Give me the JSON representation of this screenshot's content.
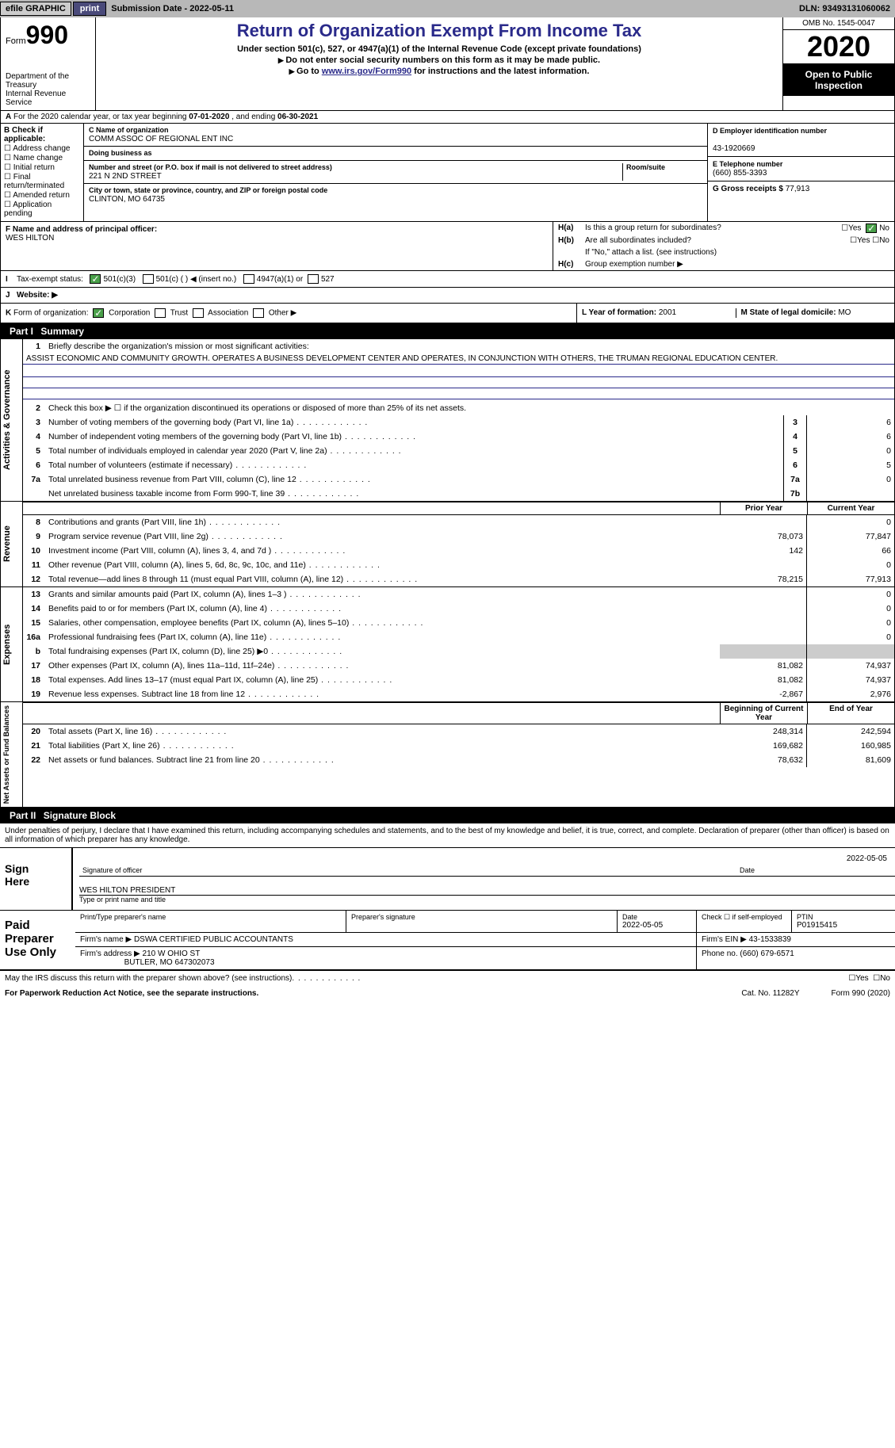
{
  "topbar": {
    "efile": "efile GRAPHIC",
    "print": "print",
    "submission_label": "Submission Date - ",
    "submission_date": "2022-05-11",
    "dln_label": "DLN: ",
    "dln": "93493131060062"
  },
  "header": {
    "form_prefix": "Form",
    "form_no": "990",
    "dept": "Department of the Treasury\nInternal Revenue Service",
    "title": "Return of Organization Exempt From Income Tax",
    "sub1": "Under section 501(c), 527, or 4947(a)(1) of the Internal Revenue Code (except private foundations)",
    "sub2": "Do not enter social security numbers on this form as it may be made public.",
    "sub3_pre": "Go to ",
    "sub3_link": "www.irs.gov/Form990",
    "sub3_post": " for instructions and the latest information.",
    "omb": "OMB No. 1545-0047",
    "year": "2020",
    "otp": "Open to Public Inspection"
  },
  "sectionA": {
    "prefix": "A",
    "text": "For the 2020 calendar year, or tax year beginning ",
    "start": "07-01-2020",
    "mid": " , and ending ",
    "end": "06-30-2021"
  },
  "boxB": {
    "label": "B Check if applicable:",
    "items": [
      "Address change",
      "Name change",
      "Initial return",
      "Final return/terminated",
      "Amended return",
      "Application pending"
    ]
  },
  "boxC": {
    "name_label": "C Name of organization",
    "name": "COMM ASSOC OF REGIONAL ENT INC",
    "dba_label": "Doing business as",
    "dba": "",
    "addr_label": "Number and street (or P.O. box if mail is not delivered to street address)",
    "room_label": "Room/suite",
    "addr": "221 N 2ND STREET",
    "city_label": "City or town, state or province, country, and ZIP or foreign postal code",
    "city": "CLINTON, MO  64735"
  },
  "boxD": {
    "label": "D Employer identification number",
    "value": "43-1920669"
  },
  "boxE": {
    "label": "E Telephone number",
    "value": "(660) 855-3393"
  },
  "boxG": {
    "label": "G Gross receipts $ ",
    "value": "77,913"
  },
  "boxF": {
    "label": "F Name and address of principal officer:",
    "value": "WES HILTON"
  },
  "boxH": {
    "a_label": "H(a)",
    "a_text": "Is this a group return for subordinates?",
    "a_yes": "Yes",
    "a_no": "No",
    "b_label": "H(b)",
    "b_text": "Are all subordinates included?",
    "b_note": "If \"No,\" attach a list. (see instructions)",
    "c_label": "H(c)",
    "c_text": "Group exemption number ▶"
  },
  "rowI": {
    "label": "I",
    "text": "Tax-exempt status:",
    "o1": "501(c)(3)",
    "o2": "501(c) (  ) ◀ (insert no.)",
    "o3": "4947(a)(1) or",
    "o4": "527"
  },
  "rowJ": {
    "label": "J",
    "text": "Website: ▶"
  },
  "rowK": {
    "label": "K",
    "text": "Form of organization:",
    "o1": "Corporation",
    "o2": "Trust",
    "o3": "Association",
    "o4": "Other ▶",
    "L_label": "L Year of formation: ",
    "L_value": "2001",
    "M_label": "M State of legal domicile: ",
    "M_value": "MO"
  },
  "part1": {
    "hdr": "Part I",
    "title": "Summary",
    "sections": [
      {
        "side": "Activities & Governance",
        "pre_rows": [
          {
            "ln": "1",
            "desc": "Briefly describe the organization's mission or most significant activities:"
          }
        ],
        "mission": "ASSIST ECONOMIC AND COMMUNITY GROWTH. OPERATES A BUSINESS DEVELOPMENT CENTER AND OPERATES, IN CONJUNCTION WITH OTHERS, THE TRUMAN REGIONAL EDUCATION CENTER.",
        "blank_lines": 3,
        "row2": {
          "ln": "2",
          "desc": "Check this box ▶ ☐  if the organization discontinued its operations or disposed of more than 25% of its net assets."
        },
        "rows": [
          {
            "ln": "3",
            "desc": "Number of voting members of the governing body (Part VI, line 1a)",
            "rn": "3",
            "cy": "6"
          },
          {
            "ln": "4",
            "desc": "Number of independent voting members of the governing body (Part VI, line 1b)",
            "rn": "4",
            "cy": "6"
          },
          {
            "ln": "5",
            "desc": "Total number of individuals employed in calendar year 2020 (Part V, line 2a)",
            "rn": "5",
            "cy": "0"
          },
          {
            "ln": "6",
            "desc": "Total number of volunteers (estimate if necessary)",
            "rn": "6",
            "cy": "5"
          },
          {
            "ln": "7a",
            "desc": "Total unrelated business revenue from Part VIII, column (C), line 12",
            "rn": "7a",
            "cy": "0"
          },
          {
            "ln": "",
            "desc": "Net unrelated business taxable income from Form 990-T, line 39",
            "rn": "7b",
            "cy": ""
          }
        ]
      },
      {
        "side": "Revenue",
        "hdr": {
          "py": "Prior Year",
          "cy": "Current Year"
        },
        "rows": [
          {
            "ln": "8",
            "desc": "Contributions and grants (Part VIII, line 1h)",
            "py": "",
            "cy": "0"
          },
          {
            "ln": "9",
            "desc": "Program service revenue (Part VIII, line 2g)",
            "py": "78,073",
            "cy": "77,847"
          },
          {
            "ln": "10",
            "desc": "Investment income (Part VIII, column (A), lines 3, 4, and 7d )",
            "py": "142",
            "cy": "66"
          },
          {
            "ln": "11",
            "desc": "Other revenue (Part VIII, column (A), lines 5, 6d, 8c, 9c, 10c, and 11e)",
            "py": "",
            "cy": "0"
          },
          {
            "ln": "12",
            "desc": "Total revenue—add lines 8 through 11 (must equal Part VIII, column (A), line 12)",
            "py": "78,215",
            "cy": "77,913"
          }
        ]
      },
      {
        "side": "Expenses",
        "rows": [
          {
            "ln": "13",
            "desc": "Grants and similar amounts paid (Part IX, column (A), lines 1–3 )",
            "py": "",
            "cy": "0"
          },
          {
            "ln": "14",
            "desc": "Benefits paid to or for members (Part IX, column (A), line 4)",
            "py": "",
            "cy": "0"
          },
          {
            "ln": "15",
            "desc": "Salaries, other compensation, employee benefits (Part IX, column (A), lines 5–10)",
            "py": "",
            "cy": "0"
          },
          {
            "ln": "16a",
            "desc": "Professional fundraising fees (Part IX, column (A), line 11e)",
            "py": "",
            "cy": "0"
          },
          {
            "ln": "b",
            "desc": "Total fundraising expenses (Part IX, column (D), line 25) ▶0",
            "py": "grey",
            "cy": "grey"
          },
          {
            "ln": "17",
            "desc": "Other expenses (Part IX, column (A), lines 11a–11d, 11f–24e)",
            "py": "81,082",
            "cy": "74,937"
          },
          {
            "ln": "18",
            "desc": "Total expenses. Add lines 13–17 (must equal Part IX, column (A), line 25)",
            "py": "81,082",
            "cy": "74,937"
          },
          {
            "ln": "19",
            "desc": "Revenue less expenses. Subtract line 18 from line 12",
            "py": "-2,867",
            "cy": "2,976"
          }
        ]
      },
      {
        "side": "Net Assets or Fund Balances",
        "hdr": {
          "py": "Beginning of Current Year",
          "cy": "End of Year"
        },
        "rows": [
          {
            "ln": "20",
            "desc": "Total assets (Part X, line 16)",
            "py": "248,314",
            "cy": "242,594"
          },
          {
            "ln": "21",
            "desc": "Total liabilities (Part X, line 26)",
            "py": "169,682",
            "cy": "160,985"
          },
          {
            "ln": "22",
            "desc": "Net assets or fund balances. Subtract line 21 from line 20",
            "py": "78,632",
            "cy": "81,609"
          }
        ]
      }
    ]
  },
  "part2": {
    "hdr": "Part II",
    "title": "Signature Block"
  },
  "penalty": "Under penalties of perjury, I declare that I have examined this return, including accompanying schedules and statements, and to the best of my knowledge and belief, it is true, correct, and complete. Declaration of preparer (other than officer) is based on all information of which preparer has any knowledge.",
  "sign": {
    "label": "Sign Here",
    "date": "2022-05-05",
    "sig_label": "Signature of officer",
    "date_label": "Date",
    "name": "WES HILTON  PRESIDENT",
    "name_label": "Type or print name and title"
  },
  "preparer": {
    "label": "Paid Preparer Use Only",
    "r1": {
      "c1_label": "Print/Type preparer's name",
      "c1": "",
      "c2_label": "Preparer's signature",
      "c2": "",
      "c3_label": "Date",
      "c3": "2022-05-05",
      "c4_label": "Check ☐ if self-employed",
      "c4": "",
      "c5_label": "PTIN",
      "c5": "P01915415"
    },
    "r2": {
      "c1_label": "Firm's name  ▶ ",
      "c1": "DSWA CERTIFIED PUBLIC ACCOUNTANTS",
      "c2_label": "Firm's EIN ▶ ",
      "c2": "43-1533839"
    },
    "r3": {
      "c1_label": "Firm's address ▶ ",
      "c1": "210 W OHIO ST",
      "c1b": "BUTLER, MO  647302073",
      "c2_label": "Phone no. ",
      "c2": "(660) 679-6571"
    }
  },
  "footer": {
    "discuss": "May the IRS discuss this return with the preparer shown above? (see instructions)",
    "yes": "Yes",
    "no": "No",
    "pra": "For Paperwork Reduction Act Notice, see the separate instructions.",
    "cat": "Cat. No. 11282Y",
    "form": "Form 990 (2020)"
  }
}
